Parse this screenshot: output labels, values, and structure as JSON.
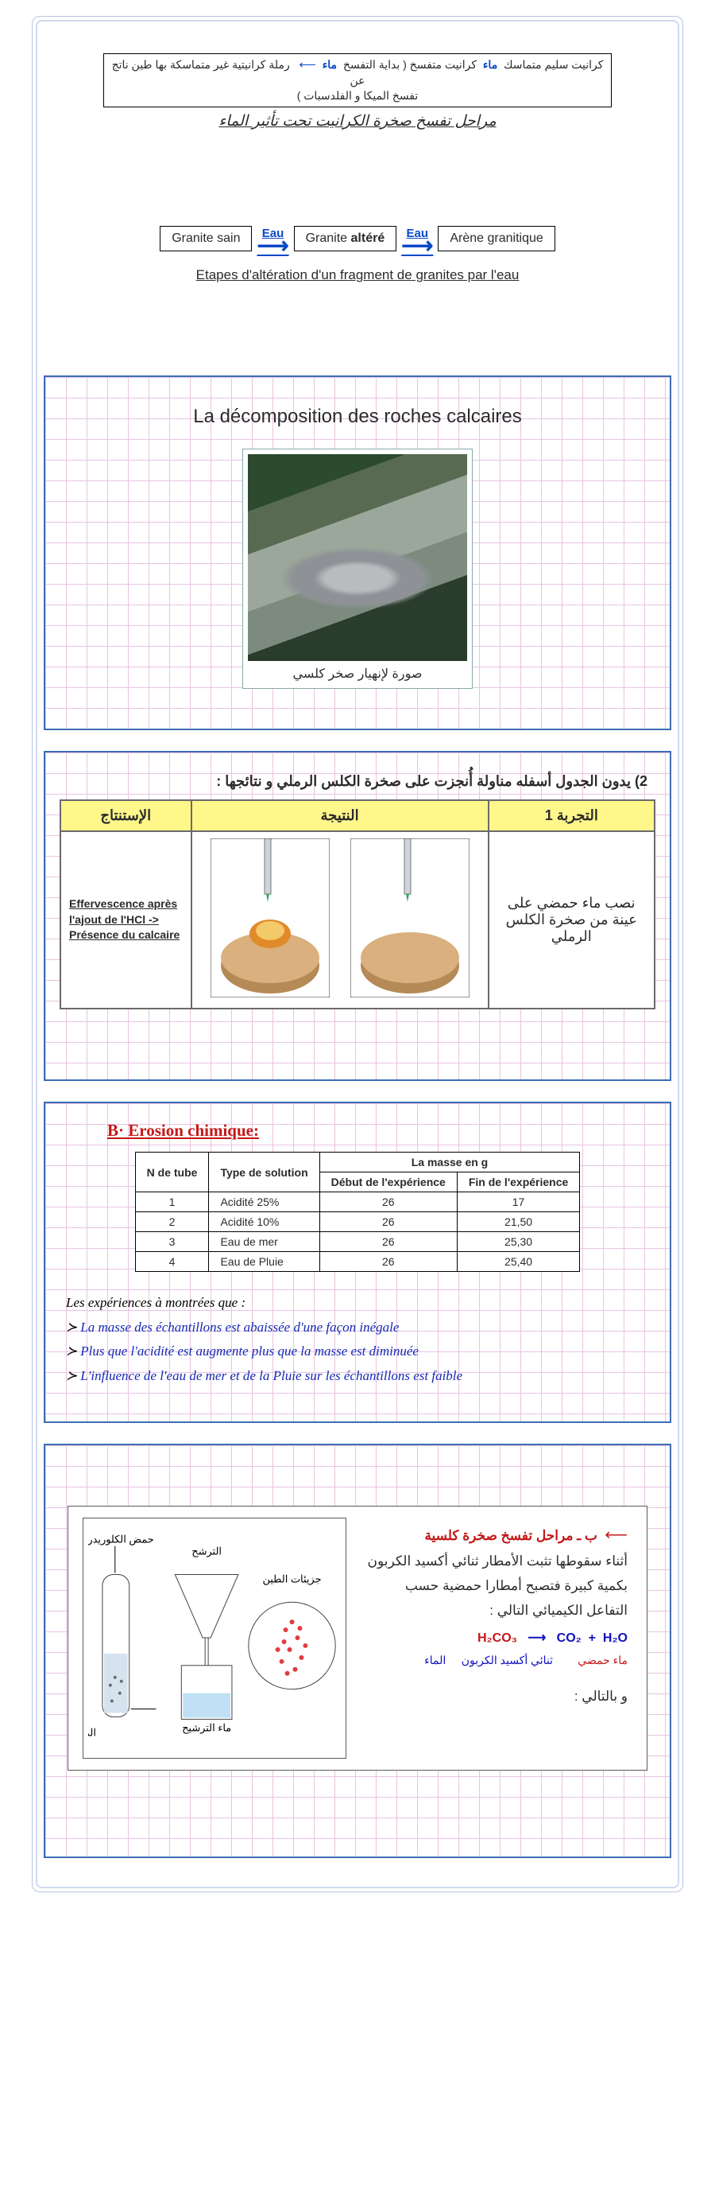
{
  "section1": {
    "ar_flow_html": "كرانيت سليم متماسك &nbsp;<span class='eau'>ماء</span>&nbsp; كرانيت متفسخ ( بداية التفسخ &nbsp;<span class='eau'>ماء</span>&nbsp; <span class='arrow-ar'>⟵</span> &nbsp; رملة كرانيتية غير متماسكة بها طين ناتج عن<br>تفسخ الميكا و الفلدسبات )",
    "caption_ar": "مراحل تفسخ صخرة الكرانيت تحت تأثير الماء",
    "fr_box1": "Granite sain",
    "fr_box2_pre": "Granite ",
    "fr_box2_bold": "altéré",
    "fr_box3": "Arène granitique",
    "eau_label": "Eau",
    "caption_fr": "Etapes d'altération d'un fragment de granites par l'eau"
  },
  "section2": {
    "title": "La décomposition des roches calcaires",
    "photo_caption": "صورة لإنهيار صخر كلسي"
  },
  "section3": {
    "lead": "2)  يدون الجدول أسفله مناولة أُنجزت على صخرة الكلس الرملي و نتائجها :",
    "col1": "الإستنتاج",
    "col2": "النتيجة",
    "col3": "التجربة 1",
    "result": "Effervescence après l'ajout de l'HCl -> Présence du calcaire",
    "desc": "نصب ماء حمضي على عينة من صخرة الكلس الرملي"
  },
  "section4": {
    "heading": "B· Erosion chimique:",
    "th_tube": "N de tube",
    "th_type": "Type de solution",
    "th_mass": "La masse en g",
    "th_debut": "Début de l'expérience",
    "th_fin": "Fin de l'expérience",
    "rows": [
      {
        "n": "1",
        "type": "Acidité 25%",
        "d": "26",
        "f": "17"
      },
      {
        "n": "2",
        "type": "Acidité 10%",
        "d": "26",
        "f": "21,50"
      },
      {
        "n": "3",
        "type": "Eau de mer",
        "d": "26",
        "f": "25,30"
      },
      {
        "n": "4",
        "type": "Eau de Pluie",
        "d": "26",
        "f": "25,40"
      }
    ],
    "obs_lead": "Les expériences à montrées que :",
    "obs1": "La masse des échantillons est abaissée d'une façon inégale",
    "obs2": "Plus que l'acidité est augmente plus que la masse est diminuée",
    "obs3": "L'influence de l'eau de mer et de la Pluie sur les échantillons est faible"
  },
  "section5": {
    "heading": "ب ـ مراحل تفسخ صخرة كلسية",
    "para1": "أثناء سقوطها تثبت الأمطار ثنائي أكسيد الكربون بكمية كبيرة فتصبح أمطارا حمضية حسب التفاعل الكيميائي التالي :",
    "h2o": "H₂O",
    "plus": "+",
    "co2": "CO₂",
    "arrow": "⟶",
    "h2co3": "H₂CO₃",
    "sub_h2o": "الماء",
    "sub_co2": "ثنائي أكسيد الكربون",
    "sub_h2co3": "ماء حمضي",
    "closer": "و بالتالي :",
    "fig_labels": {
      "acid": "حمض الكلوريدريك",
      "filter": "الترشح",
      "clay": "جزيئات الطين",
      "filtrate": "ماء الترشيح",
      "mix": "الماء + مسحوق صخرة التسجين"
    }
  }
}
